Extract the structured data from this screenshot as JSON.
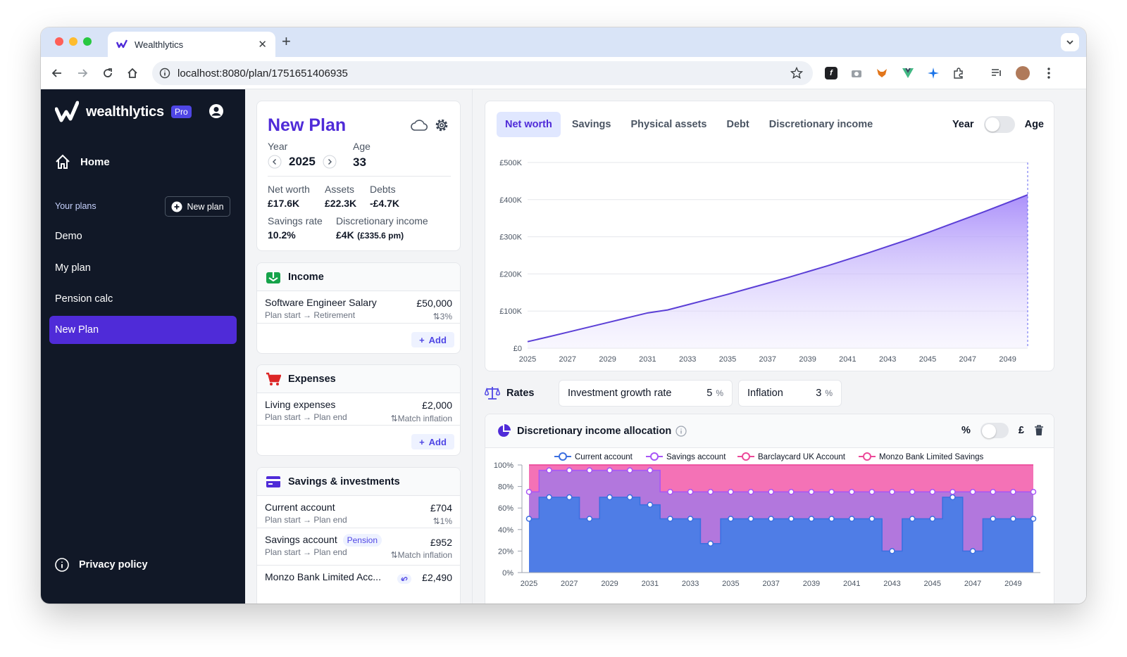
{
  "browser": {
    "tab_title": "Wealthlytics",
    "url": "localhost:8080/plan/1751651406935"
  },
  "sidebar": {
    "brand": "wealthlytics",
    "badge": "Pro",
    "home": "Home",
    "your_plans": "Your plans",
    "new_plan": "New plan",
    "plans": [
      "Demo",
      "My plan",
      "Pension calc",
      "New Plan"
    ],
    "active_plan": "New Plan",
    "privacy": "Privacy policy"
  },
  "summary": {
    "title": "New Plan",
    "year_label": "Year",
    "year": "2025",
    "age_label": "Age",
    "age": "33",
    "net_worth_label": "Net worth",
    "net_worth": "£17.6K",
    "assets_label": "Assets",
    "assets": "£22.3K",
    "debts_label": "Debts",
    "debts": "-£4.7K",
    "savings_rate_label": "Savings rate",
    "savings_rate": "10.2%",
    "disc_income_label": "Discretionary income",
    "disc_income": "£4K",
    "disc_income_pm": "(£335.6 pm)"
  },
  "income": {
    "title": "Income",
    "items": [
      {
        "name": "Software Engineer Salary",
        "period": "Plan start → Retirement",
        "amount": "£50,000",
        "growth": "3%"
      }
    ],
    "add": "Add"
  },
  "expenses": {
    "title": "Expenses",
    "items": [
      {
        "name": "Living expenses",
        "period": "Plan start → Plan end",
        "amount": "£2,000",
        "growth": "Match inflation"
      }
    ],
    "add": "Add"
  },
  "savings": {
    "title": "Savings & investments",
    "items": [
      {
        "name": "Current account",
        "period": "Plan start → Plan end",
        "amount": "£704",
        "growth": "1%"
      },
      {
        "name": "Savings account",
        "tag": "Pension",
        "period": "Plan start → Plan end",
        "amount": "£952",
        "growth": "Match inflation"
      },
      {
        "name": "Monzo Bank Limited Acc...",
        "amount": "£2,490"
      }
    ]
  },
  "chart_tabs": [
    "Net worth",
    "Savings",
    "Physical assets",
    "Debt",
    "Discretionary income"
  ],
  "active_chart_tab": "Net worth",
  "toggle_labels": {
    "year": "Year",
    "age": "Age"
  },
  "rates": {
    "title": "Rates",
    "investment_label": "Investment growth rate",
    "investment_value": "5",
    "inflation_label": "Inflation",
    "inflation_value": "3",
    "unit": "%"
  },
  "allocation": {
    "title": "Discretionary income allocation",
    "toggle_left": "%",
    "toggle_right": "£"
  },
  "colors": {
    "brand": "#4f2bd8",
    "sidebar_bg": "#111827",
    "net_worth_line": "#5b3fd6",
    "current_account": "#3b6fe0",
    "savings_account": "#a855f7",
    "barclaycard": "#ec4899",
    "monzo": "#ec4899"
  },
  "chart_data": [
    {
      "type": "area",
      "title": "Net worth",
      "x": [
        2025,
        2026,
        2027,
        2028,
        2029,
        2030,
        2031,
        2032,
        2033,
        2034,
        2035,
        2036,
        2037,
        2038,
        2039,
        2040,
        2041,
        2042,
        2043,
        2044,
        2045,
        2046,
        2047,
        2048,
        2049,
        2050
      ],
      "values": [
        17600,
        30000,
        43000,
        56000,
        69000,
        82000,
        95000,
        103000,
        117000,
        131000,
        145000,
        160000,
        175000,
        190000,
        206000,
        222000,
        239000,
        256000,
        274000,
        292000,
        311000,
        331000,
        351000,
        371000,
        392000,
        413000
      ],
      "x_ticks": [
        "2025",
        "2027",
        "2029",
        "2031",
        "2033",
        "2035",
        "2037",
        "2039",
        "2041",
        "2043",
        "2045",
        "2047",
        "2049"
      ],
      "y_ticks": [
        "£0",
        "£100K",
        "£200K",
        "£300K",
        "£400K",
        "£500K"
      ],
      "ylim": [
        0,
        500000
      ]
    },
    {
      "type": "area",
      "title": "Discretionary income allocation",
      "x": [
        2025,
        2026,
        2027,
        2028,
        2029,
        2030,
        2031,
        2032,
        2033,
        2034,
        2035,
        2036,
        2037,
        2038,
        2039,
        2040,
        2041,
        2042,
        2043,
        2044,
        2045,
        2046,
        2047,
        2048,
        2049,
        2050
      ],
      "x_ticks": [
        "2025",
        "2027",
        "2029",
        "2031",
        "2033",
        "2035",
        "2037",
        "2039",
        "2041",
        "2043",
        "2045",
        "2047",
        "2049"
      ],
      "y_ticks": [
        "0%",
        "20%",
        "40%",
        "60%",
        "80%",
        "100%"
      ],
      "ylim": [
        0,
        100
      ],
      "series": [
        {
          "name": "Current account",
          "values": [
            50,
            70,
            70,
            50,
            70,
            70,
            63,
            50,
            50,
            27,
            50,
            50,
            50,
            50,
            50,
            50,
            50,
            50,
            20,
            50,
            50,
            70,
            20,
            50,
            50,
            50
          ]
        },
        {
          "name": "Savings account",
          "values": [
            75,
            95,
            95,
            95,
            95,
            95,
            95,
            75,
            75,
            75,
            75,
            75,
            75,
            75,
            75,
            75,
            75,
            75,
            75,
            75,
            75,
            75,
            75,
            75,
            75,
            75
          ]
        },
        {
          "name": "Barclaycard UK Account",
          "values": [
            100,
            100,
            100,
            100,
            100,
            100,
            100,
            100,
            100,
            100,
            100,
            100,
            100,
            100,
            100,
            100,
            100,
            100,
            100,
            100,
            100,
            100,
            100,
            100,
            100,
            100
          ]
        },
        {
          "name": "Monzo Bank Limited Savings",
          "values": [
            100,
            100,
            100,
            100,
            100,
            100,
            100,
            100,
            100,
            100,
            100,
            100,
            100,
            100,
            100,
            100,
            100,
            100,
            100,
            100,
            100,
            100,
            100,
            100,
            100,
            100
          ]
        }
      ]
    }
  ]
}
